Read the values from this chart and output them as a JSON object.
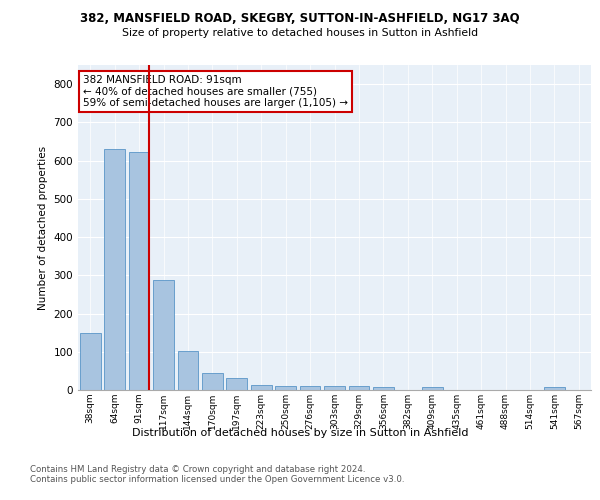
{
  "title1": "382, MANSFIELD ROAD, SKEGBY, SUTTON-IN-ASHFIELD, NG17 3AQ",
  "title2": "Size of property relative to detached houses in Sutton in Ashfield",
  "xlabel": "Distribution of detached houses by size in Sutton in Ashfield",
  "ylabel": "Number of detached properties",
  "categories": [
    "38sqm",
    "64sqm",
    "91sqm",
    "117sqm",
    "144sqm",
    "170sqm",
    "197sqm",
    "223sqm",
    "250sqm",
    "276sqm",
    "303sqm",
    "329sqm",
    "356sqm",
    "382sqm",
    "409sqm",
    "435sqm",
    "461sqm",
    "488sqm",
    "514sqm",
    "541sqm",
    "567sqm"
  ],
  "values": [
    148,
    630,
    622,
    289,
    101,
    45,
    31,
    12,
    10,
    10,
    10,
    10,
    8,
    0,
    8,
    0,
    0,
    0,
    0,
    8,
    0
  ],
  "bar_color": "#a8c4e0",
  "bar_edge_color": "#5a96c8",
  "highlight_index": 2,
  "highlight_line_color": "#cc0000",
  "annotation_text": "382 MANSFIELD ROAD: 91sqm\n← 40% of detached houses are smaller (755)\n59% of semi-detached houses are larger (1,105) →",
  "annotation_box_color": "#ffffff",
  "annotation_box_edge": "#cc0000",
  "ylim": [
    0,
    850
  ],
  "yticks": [
    0,
    100,
    200,
    300,
    400,
    500,
    600,
    700,
    800
  ],
  "footer1": "Contains HM Land Registry data © Crown copyright and database right 2024.",
  "footer2": "Contains public sector information licensed under the Open Government Licence v3.0.",
  "bg_color": "#e8f0f8",
  "fig_bg_color": "#ffffff"
}
